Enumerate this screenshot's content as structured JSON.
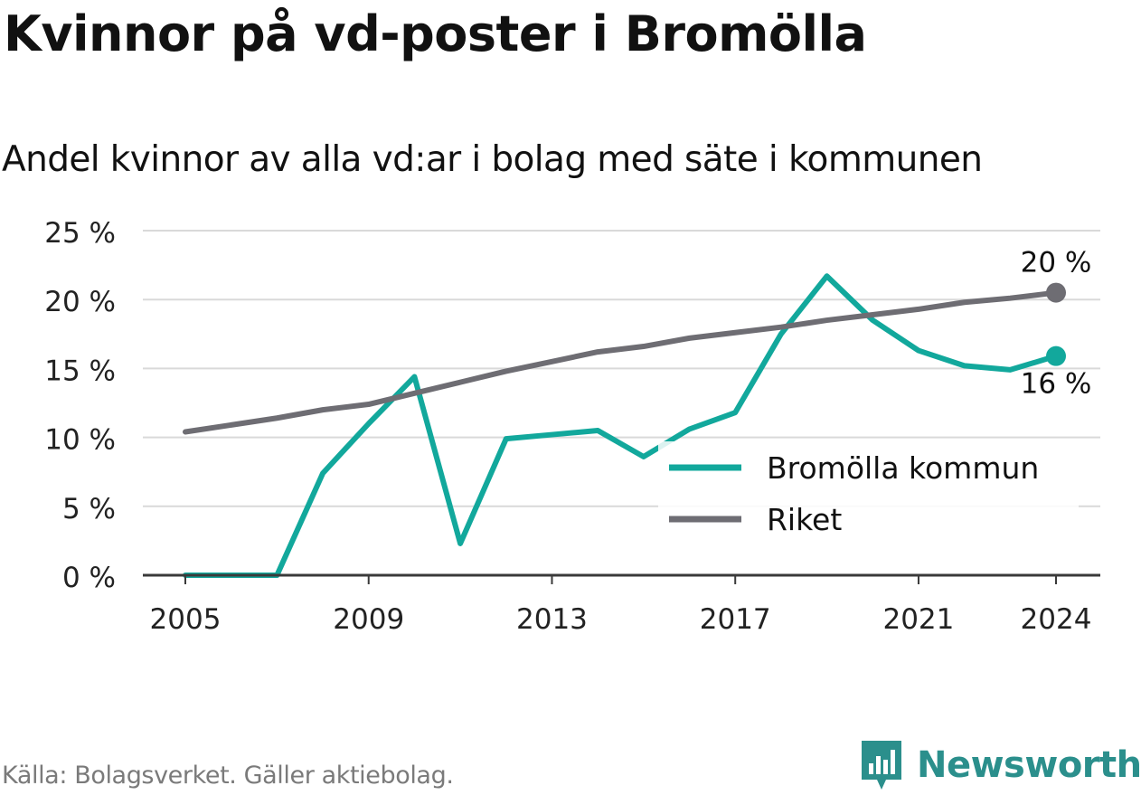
{
  "header": {
    "title": "Kvinnor på vd-poster i Bromölla",
    "subtitle": "Andel kvinnor av alla vd:ar i bolag med säte i kommunen"
  },
  "footer": {
    "source": "Källa: Bolagsverket. Gäller aktiebolag.",
    "brand": "Newsworthy"
  },
  "colors": {
    "bromolla": "#12a89c",
    "riket": "#6e6d73",
    "grid": "#d9d9d9",
    "axis": "#3a3a3a",
    "brand": "#2b8f8c"
  },
  "chart_data": {
    "type": "line",
    "title": "Kvinnor på vd-poster i Bromölla",
    "subtitle": "Andel kvinnor av alla vd:ar i bolag med säte i kommunen",
    "x": [
      2005,
      2006,
      2007,
      2008,
      2009,
      2010,
      2011,
      2012,
      2013,
      2014,
      2015,
      2016,
      2017,
      2018,
      2019,
      2020,
      2021,
      2022,
      2023,
      2024
    ],
    "series": [
      {
        "name": "Bromölla kommun",
        "color": "#12a89c",
        "values": [
          0,
          0,
          0,
          7.4,
          11.0,
          14.4,
          2.3,
          9.9,
          10.2,
          10.5,
          8.6,
          10.6,
          11.8,
          17.5,
          21.7,
          18.5,
          16.3,
          15.2,
          14.9,
          15.9
        ]
      },
      {
        "name": "Riket",
        "color": "#6e6d73",
        "values": [
          10.4,
          10.9,
          11.4,
          12.0,
          12.4,
          13.2,
          14.0,
          14.8,
          15.5,
          16.2,
          16.6,
          17.2,
          17.6,
          18.0,
          18.5,
          18.9,
          19.3,
          19.8,
          20.1,
          20.5
        ]
      }
    ],
    "end_labels": {
      "Bromölla kommun": "16 %",
      "Riket": "20 %"
    },
    "y_ticks": [
      "0 %",
      "5 %",
      "10 %",
      "15 %",
      "20 %",
      "25 %"
    ],
    "y_tick_values": [
      0,
      5,
      10,
      15,
      20,
      25
    ],
    "x_ticks": [
      "2005",
      "2009",
      "2013",
      "2017",
      "2021",
      "2024"
    ],
    "x_tick_values": [
      2005,
      2009,
      2013,
      2017,
      2021,
      2024
    ],
    "ylim": [
      0,
      25
    ],
    "xlim": [
      2005,
      2024
    ],
    "grid": true,
    "legend_position": "bottom-right",
    "legend": [
      "Bromölla kommun",
      "Riket"
    ]
  }
}
